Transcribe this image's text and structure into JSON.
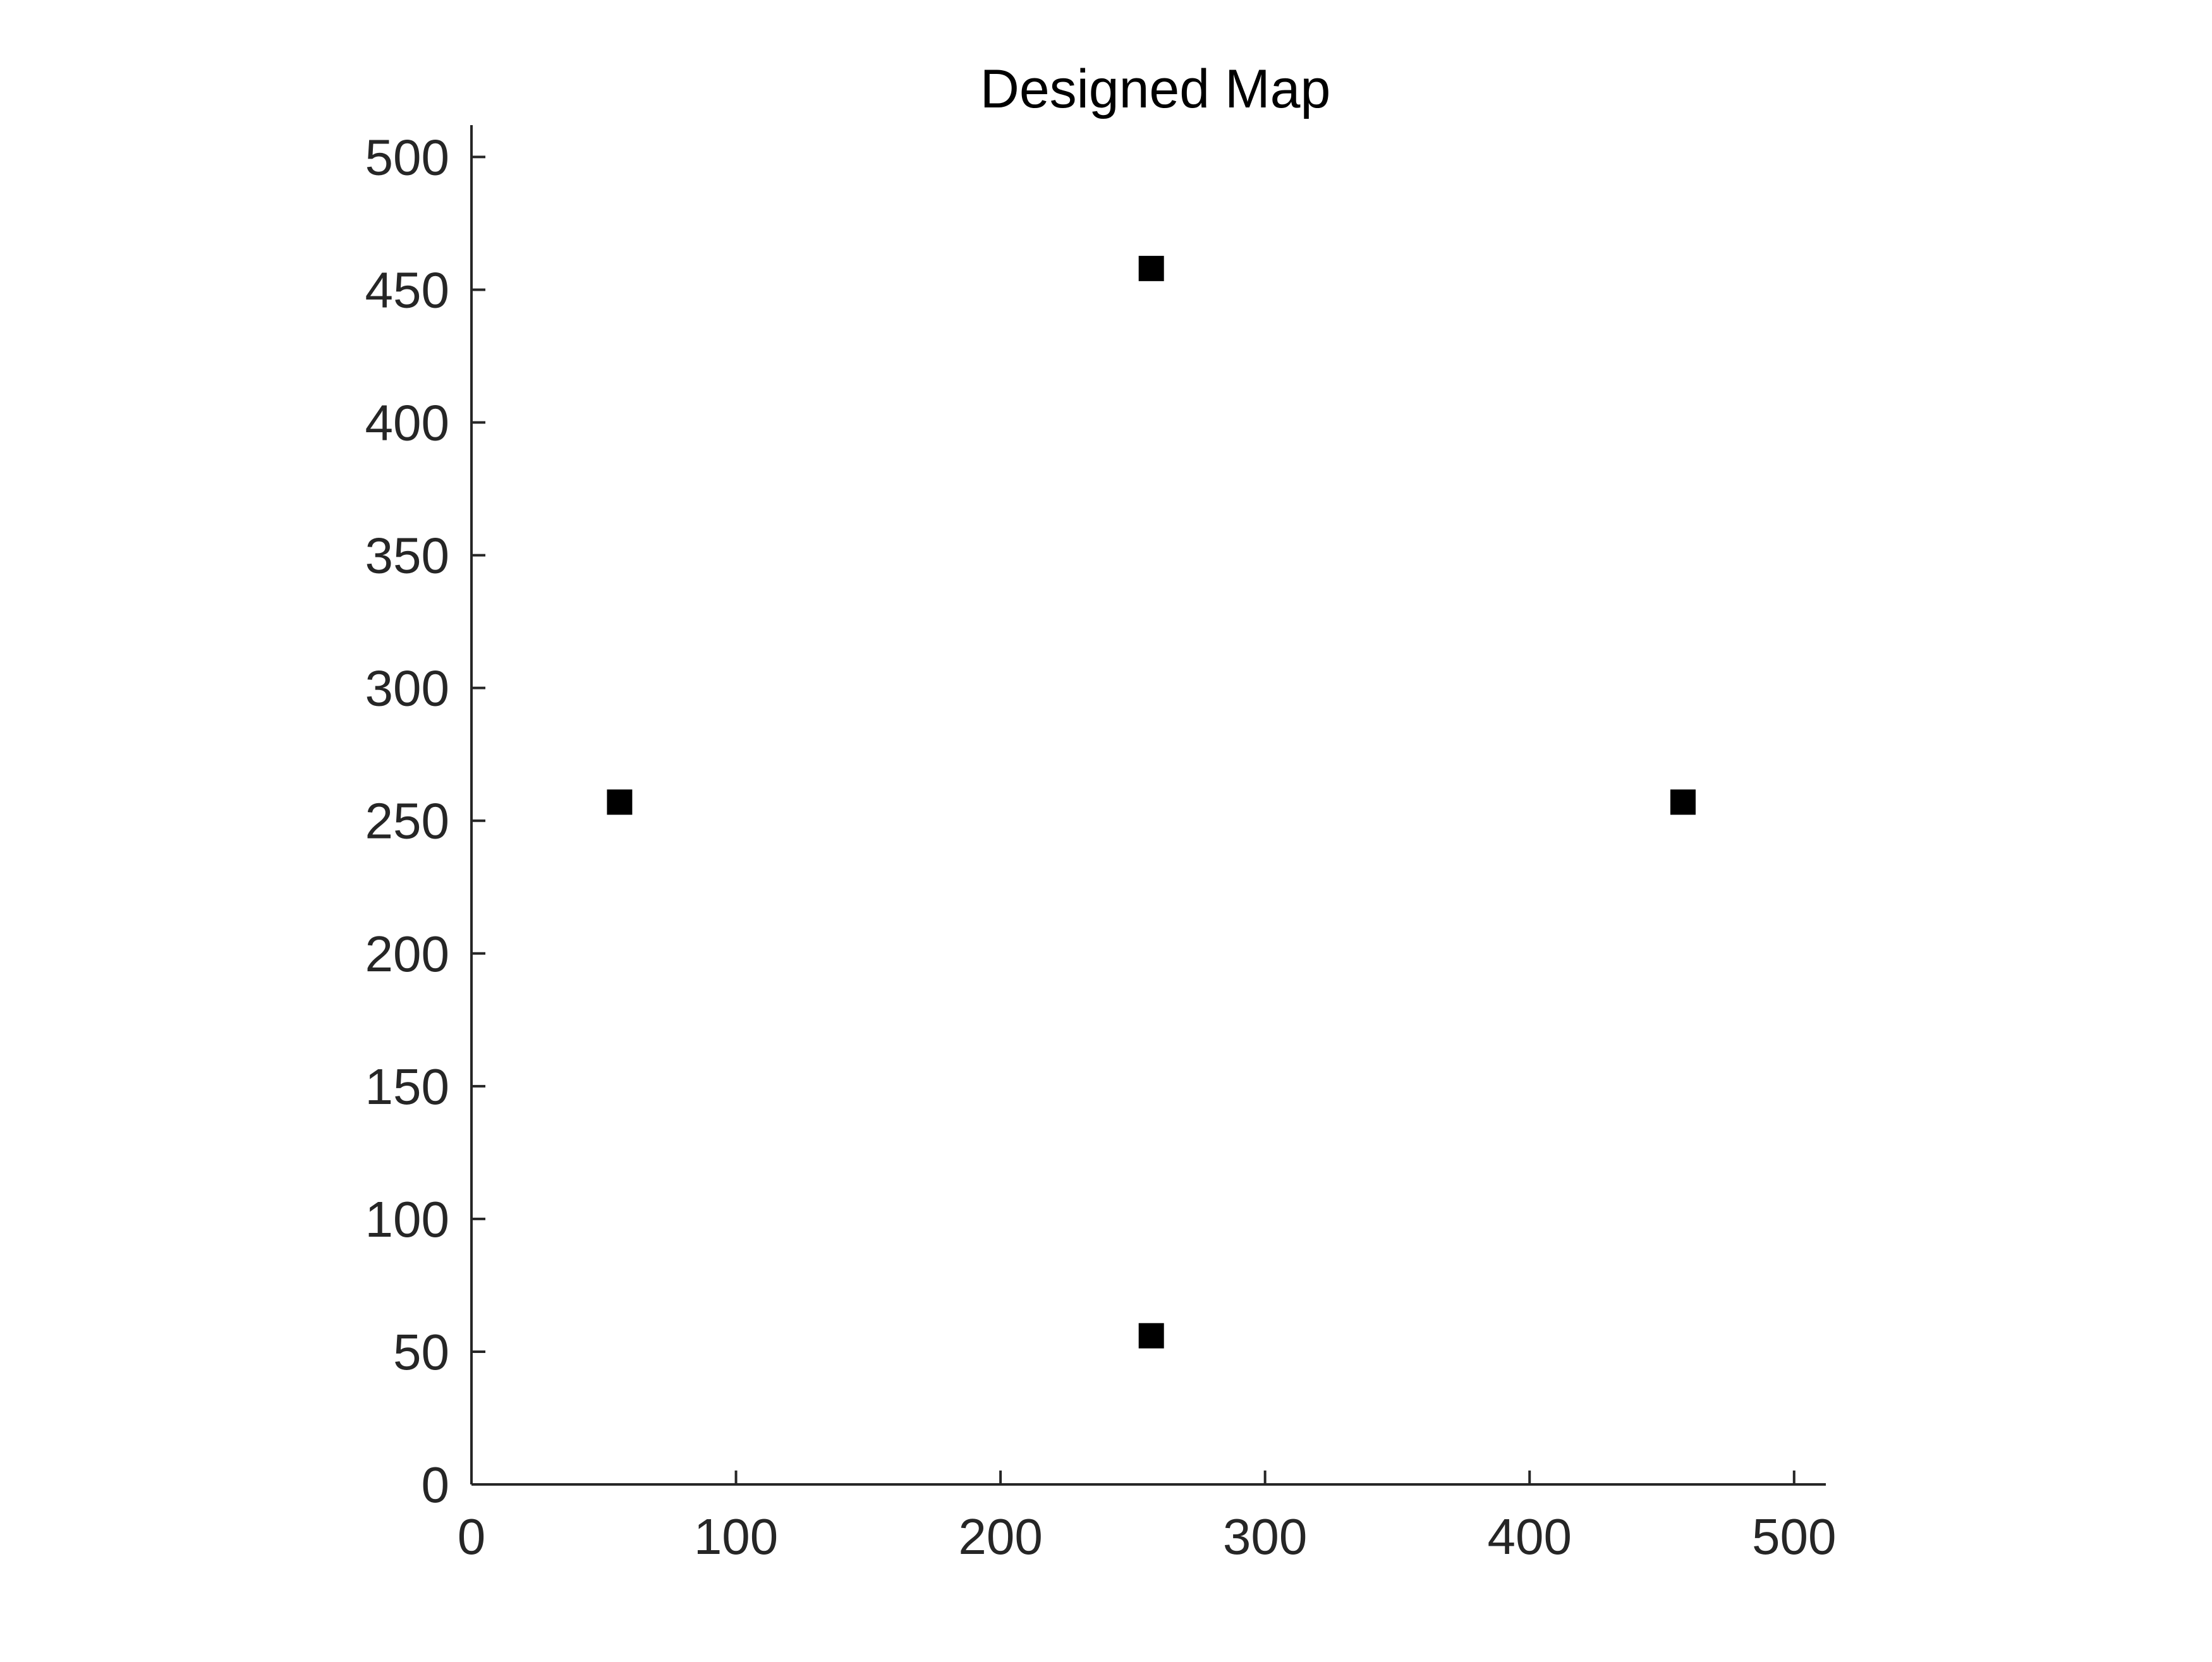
{
  "chart_data": {
    "type": "scatter",
    "title": "Designed Map",
    "xlabel": "",
    "ylabel": "",
    "xlim": [
      0,
      512
    ],
    "ylim": [
      0,
      512
    ],
    "xticks": [
      0,
      100,
      200,
      300,
      400,
      500
    ],
    "yticks": [
      0,
      50,
      100,
      150,
      200,
      250,
      300,
      350,
      400,
      450,
      500
    ],
    "grid": false,
    "legend": "none",
    "marker": "square",
    "marker_color": "#000000",
    "axis_color": "#262626",
    "series": [
      {
        "points": [
          {
            "x": 257,
            "y": 458
          },
          {
            "x": 56,
            "y": 257
          },
          {
            "x": 458,
            "y": 257
          },
          {
            "x": 257,
            "y": 56
          }
        ]
      }
    ]
  }
}
